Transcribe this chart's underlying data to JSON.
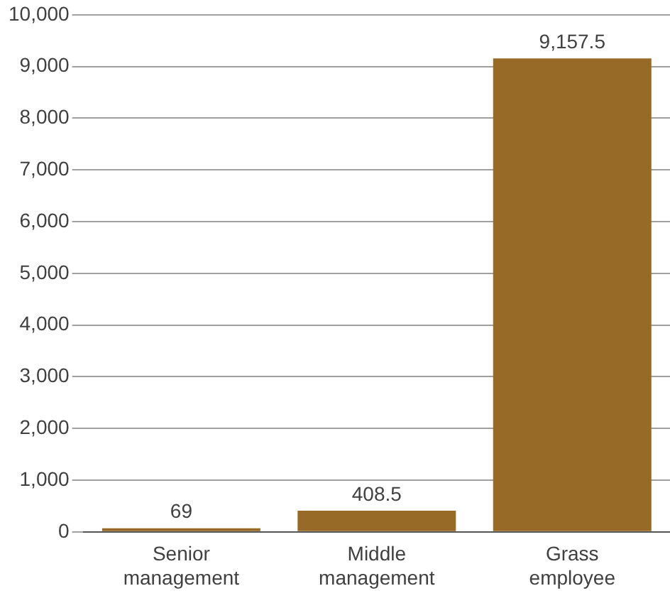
{
  "chart_data": {
    "type": "bar",
    "categories": [
      "Senior management",
      "Middle management",
      "Grass employee"
    ],
    "values": [
      69,
      408.5,
      9157.5
    ],
    "value_labels": [
      "69",
      "408.5",
      "9,157.5"
    ],
    "color": "#976b27",
    "ylim": [
      0,
      10000
    ],
    "yticks": [
      0,
      {
        "value": 1000,
        "label": "1,000"
      },
      {
        "value": 2000,
        "label": "2,000"
      },
      {
        "value": 3000,
        "label": "3,000"
      },
      {
        "value": 4000,
        "label": "4,000"
      },
      {
        "value": 5000,
        "label": "5,000"
      },
      {
        "value": 6000,
        "label": "6,000"
      },
      {
        "value": 7000,
        "label": "7,000"
      },
      {
        "value": 8000,
        "label": "8,000"
      },
      {
        "value": 9000,
        "label": "9,000"
      },
      {
        "value": 10000,
        "label": "10,000"
      }
    ],
    "grid": "y"
  }
}
